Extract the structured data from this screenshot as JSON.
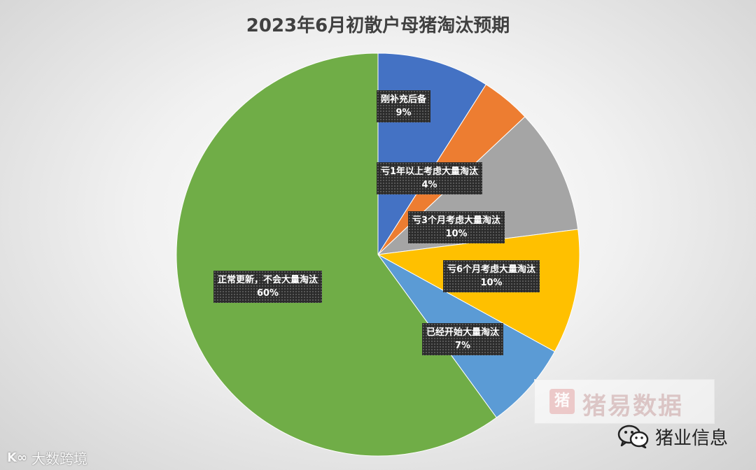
{
  "chart_data": {
    "type": "pie",
    "title": "2023年6月初散户母猪淘汰预期",
    "slices": [
      {
        "label": "刚补充后备",
        "value": 9,
        "pct_text": "9%",
        "color": "#4472C4"
      },
      {
        "label": "亏1年以上考虑大量淘汰",
        "value": 4,
        "pct_text": "4%",
        "color": "#ED7D31"
      },
      {
        "label": "亏3个月考虑大量淘汰",
        "value": 10,
        "pct_text": "10%",
        "color": "#A5A5A5"
      },
      {
        "label": "亏6个月考虑大量淘汰",
        "value": 10,
        "pct_text": "10%",
        "color": "#FFC000"
      },
      {
        "label": "已经开始大量淘汰",
        "value": 7,
        "pct_text": "7%",
        "color": "#5B9BD5"
      },
      {
        "label": "正常更新，不会大量淘汰",
        "value": 60,
        "pct_text": "60%",
        "color": "#70AD47"
      }
    ],
    "start": "12 o'clock",
    "direction": "clockwise"
  },
  "watermark": {
    "logo_glyph": "猪",
    "text": "猪易数据"
  },
  "account": {
    "icon": "wechat-icon",
    "name": "猪业信息"
  },
  "corner_watermark": {
    "icon_text": "K∞",
    "text": "大数跨境"
  }
}
